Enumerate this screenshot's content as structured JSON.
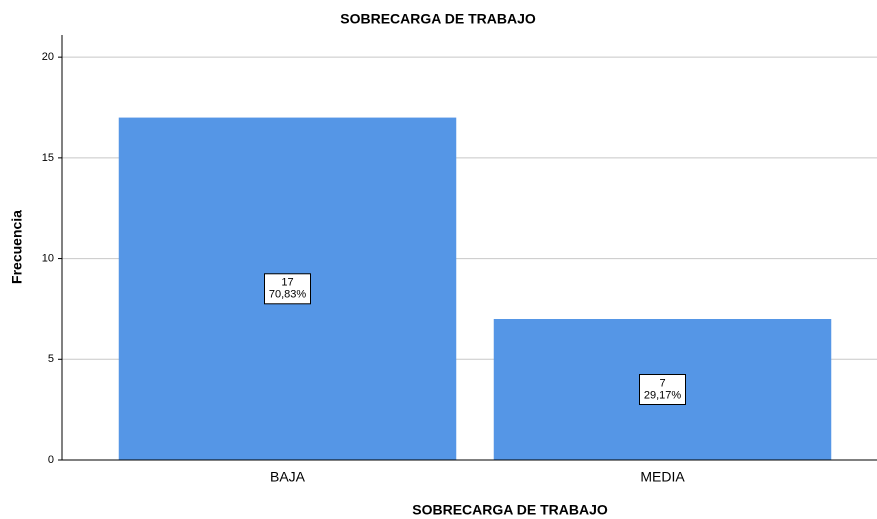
{
  "chart_data": {
    "type": "bar",
    "title": "SOBRECARGA DE TRABAJO",
    "x_label": "SOBRECARGA DE TRABAJO",
    "y_label": "Frecuencia",
    "categories": [
      "BAJA",
      "MEDIA"
    ],
    "values": [
      17,
      7
    ],
    "percent_labels": [
      "70,83%",
      "29,17%"
    ],
    "color": "#5596e6",
    "ylim": [
      0,
      21.1
    ],
    "yticks": [
      0,
      5,
      10,
      15,
      20
    ],
    "grid": true
  }
}
